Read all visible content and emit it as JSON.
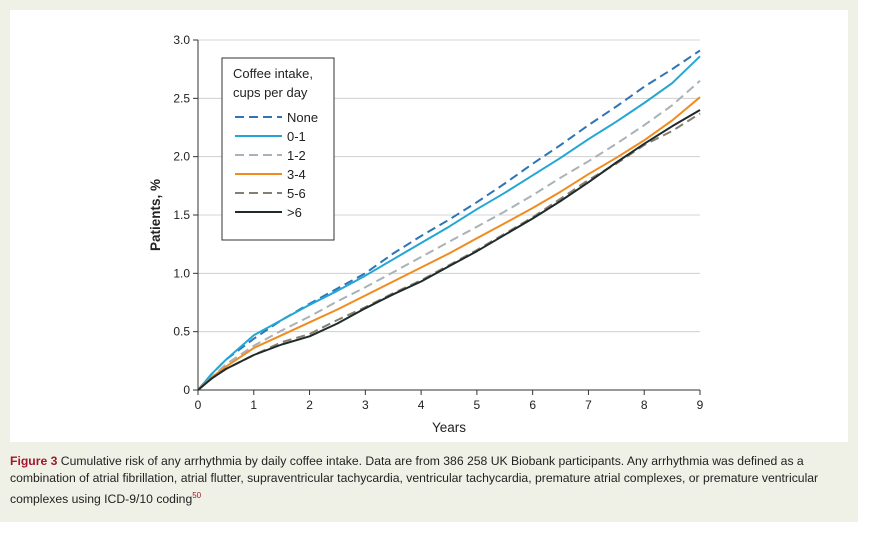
{
  "chart_data": {
    "type": "line",
    "title": "",
    "xlabel": "Years",
    "ylabel": "Patients, %",
    "xlim": [
      0,
      9
    ],
    "ylim": [
      0,
      3.0
    ],
    "xticks": [
      "0",
      "1",
      "2",
      "3",
      "4",
      "5",
      "6",
      "7",
      "8",
      "9"
    ],
    "yticks": [
      "0",
      "0.5",
      "1.0",
      "1.5",
      "2.0",
      "2.5",
      "3.0"
    ],
    "grid": "horizontal",
    "legend": {
      "title_line1": "Coffee intake,",
      "title_line2": "cups per day",
      "placement": "top-left"
    },
    "x": [
      0,
      0.25,
      0.5,
      1,
      1.5,
      2,
      2.5,
      3,
      3.5,
      4,
      4.5,
      5,
      5.5,
      6,
      6.5,
      7,
      7.5,
      8,
      8.5,
      9
    ],
    "series": [
      {
        "name": "None",
        "color": "#2e75b6",
        "dash": "dashed",
        "values": [
          0,
          0.14,
          0.26,
          0.44,
          0.6,
          0.74,
          0.87,
          1.0,
          1.17,
          1.32,
          1.46,
          1.61,
          1.77,
          1.94,
          2.1,
          2.27,
          2.43,
          2.6,
          2.75,
          2.91
        ]
      },
      {
        "name": "0-1",
        "color": "#23a6d5",
        "dash": "solid",
        "values": [
          0,
          0.14,
          0.26,
          0.47,
          0.6,
          0.73,
          0.85,
          0.98,
          1.12,
          1.26,
          1.4,
          1.55,
          1.69,
          1.84,
          1.99,
          2.15,
          2.3,
          2.46,
          2.63,
          2.86
        ]
      },
      {
        "name": "1-2",
        "color": "#a9b2b8",
        "dash": "dashed",
        "values": [
          0,
          0.11,
          0.22,
          0.38,
          0.51,
          0.63,
          0.76,
          0.88,
          1.01,
          1.14,
          1.27,
          1.4,
          1.53,
          1.67,
          1.82,
          1.96,
          2.11,
          2.27,
          2.44,
          2.65
        ]
      },
      {
        "name": "3-4",
        "color": "#f08c1e",
        "dash": "solid",
        "values": [
          0,
          0.11,
          0.2,
          0.36,
          0.47,
          0.58,
          0.69,
          0.81,
          0.93,
          1.05,
          1.17,
          1.3,
          1.43,
          1.56,
          1.7,
          1.85,
          1.99,
          2.14,
          2.31,
          2.51
        ]
      },
      {
        "name": "5-6",
        "color": "#857f73",
        "dash": "dashed",
        "values": [
          0,
          0.1,
          0.18,
          0.3,
          0.41,
          0.48,
          0.6,
          0.71,
          0.83,
          0.94,
          1.07,
          1.2,
          1.34,
          1.48,
          1.64,
          1.8,
          1.94,
          2.1,
          2.22,
          2.37
        ]
      },
      {
        "name": ">6",
        "color": "#1f2a2a",
        "dash": "solid",
        "values": [
          0,
          0.1,
          0.18,
          0.3,
          0.39,
          0.46,
          0.57,
          0.7,
          0.82,
          0.93,
          1.06,
          1.19,
          1.33,
          1.47,
          1.62,
          1.78,
          1.95,
          2.11,
          2.26,
          2.4
        ]
      }
    ]
  },
  "caption": {
    "label": "Figure 3",
    "text": " Cumulative risk of any arrhythmia by daily coffee intake. Data are from 386 258 UK Biobank participants. Any arrhythmia was defined as a combination of atrial fibrillation, atrial flutter, supraventricular tachycardia, ventricular tachycardia, premature atrial complexes, or premature ventricular complexes using ICD-9/10 coding",
    "ref": "50"
  }
}
